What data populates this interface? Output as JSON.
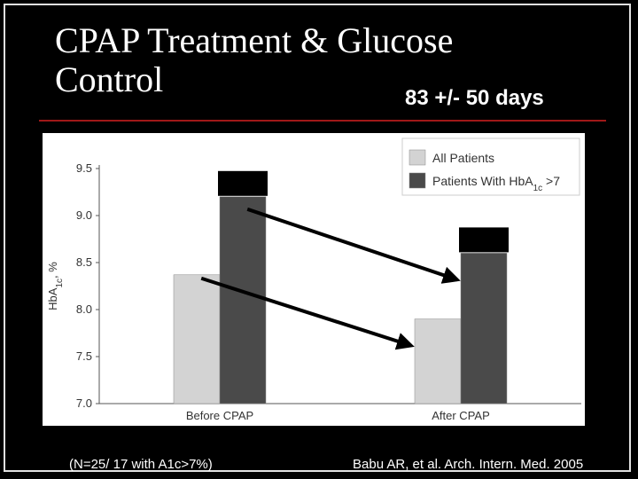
{
  "slide": {
    "title": "CPAP Treatment & Glucose Control",
    "subtitle": "83 +/- 50 days",
    "footnote_left": "(N=25/ 17 with A1c>7%)",
    "footnote_right": "Babu AR, et al. Arch. Intern. Med. 2005",
    "colors": {
      "background": "#000000",
      "rule": "#a01818",
      "all_patients": "#d3d3d3",
      "hba1c_gt7": "#4a4a4a"
    }
  },
  "chart_data": {
    "type": "bar",
    "categories": [
      "Before CPAP",
      "After CPAP"
    ],
    "series": [
      {
        "name": "All Patients",
        "values": [
          8.37,
          7.9
        ],
        "color": "#d3d3d3"
      },
      {
        "name": "Patients With HbA1c >7",
        "name_parts": {
          "main": "Patients With HbA",
          "sub": "1c",
          "suffix": " >7"
        },
        "values": [
          9.2,
          8.6
        ],
        "color": "#4a4a4a"
      }
    ],
    "ylabel": "HbA1c, %",
    "ylabel_parts": {
      "main": "HbA",
      "sub": "1c",
      "suffix": ", %"
    },
    "ylim": [
      7.0,
      9.5
    ],
    "yticks": [
      "7.0",
      "7.5",
      "8.0",
      "8.5",
      "9.0",
      "9.5"
    ],
    "legend_position": "top-right",
    "grid": false,
    "annotations": "black redaction boxes above the HbA1c >7 bars; two arrows pointing from the before bars to the after bars"
  }
}
